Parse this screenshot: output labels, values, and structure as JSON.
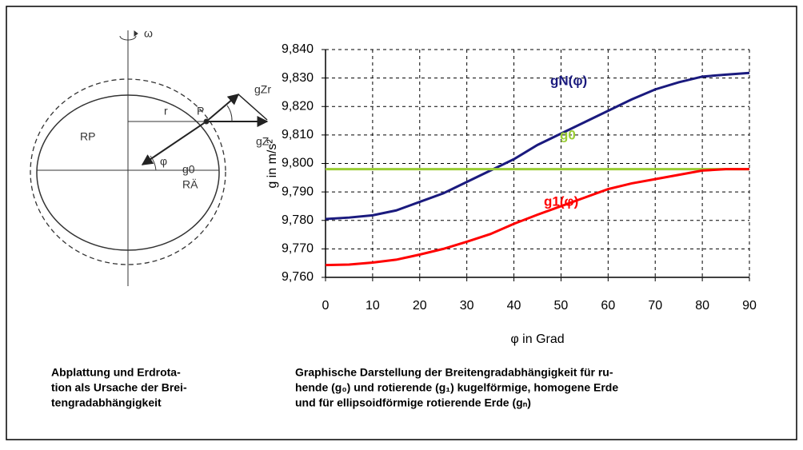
{
  "diagram": {
    "labels": [
      "ω",
      "P",
      "r",
      "RP",
      "φ",
      "g0",
      "gZr",
      "gZ",
      "RÄ"
    ]
  },
  "chart_data": {
    "type": "line",
    "x": [
      0,
      5,
      10,
      15,
      20,
      25,
      30,
      35,
      40,
      45,
      50,
      55,
      60,
      65,
      70,
      75,
      80,
      85,
      90
    ],
    "series": [
      {
        "name": "gN(φ)",
        "color": "#1a1a7e",
        "values": [
          9.7805,
          9.781,
          9.7818,
          9.7835,
          9.7865,
          9.7895,
          9.7935,
          9.7975,
          9.8015,
          9.8065,
          9.8105,
          9.8145,
          9.8185,
          9.8225,
          9.826,
          9.8285,
          9.8305,
          9.8312,
          9.8318
        ]
      },
      {
        "name": "g0",
        "color": "#99cc33",
        "values": [
          9.798,
          9.798,
          9.798,
          9.798,
          9.798,
          9.798,
          9.798,
          9.798,
          9.798,
          9.798,
          9.798,
          9.798,
          9.798,
          9.798,
          9.798,
          9.798,
          9.798,
          9.798,
          9.798
        ]
      },
      {
        "name": "g1(φ)",
        "color": "#ff0000",
        "values": [
          9.7643,
          9.7645,
          9.7652,
          9.7662,
          9.768,
          9.77,
          9.7725,
          9.7752,
          9.7788,
          9.782,
          9.785,
          9.788,
          9.791,
          9.793,
          9.7945,
          9.796,
          9.7975,
          9.798,
          9.798
        ]
      }
    ],
    "xlim": [
      0,
      90
    ],
    "xticks": [
      0,
      10,
      20,
      30,
      40,
      50,
      60,
      70,
      80,
      90
    ],
    "ylim": [
      9.76,
      9.84
    ],
    "yticks": [
      {
        "value": 9.76,
        "label": "9,760"
      },
      {
        "value": 9.77,
        "label": "9,770"
      },
      {
        "value": 9.78,
        "label": "9,780"
      },
      {
        "value": 9.79,
        "label": "9,790"
      },
      {
        "value": 9.8,
        "label": "9,800"
      },
      {
        "value": 9.81,
        "label": "9,810"
      },
      {
        "value": 9.82,
        "label": "9,820"
      },
      {
        "value": 9.83,
        "label": "9,830"
      },
      {
        "value": 9.84,
        "label": "9,840"
      }
    ],
    "xlabel": "φ in Grad",
    "ylabel": "g in m/s²",
    "grid": true
  },
  "captions": {
    "left": [
      "Abplattung und Erdrota-",
      "tion als Ursache der Brei-",
      "tengradabhängigkeit"
    ],
    "right": [
      "Graphische Darstellung der Breitengradabhängigkeit für ru-",
      "hende (g₀) und rotierende (g₁) kugelförmige, homogene Erde",
      "und für ellipsoidförmige rotierende Erde (gₙ)"
    ]
  }
}
